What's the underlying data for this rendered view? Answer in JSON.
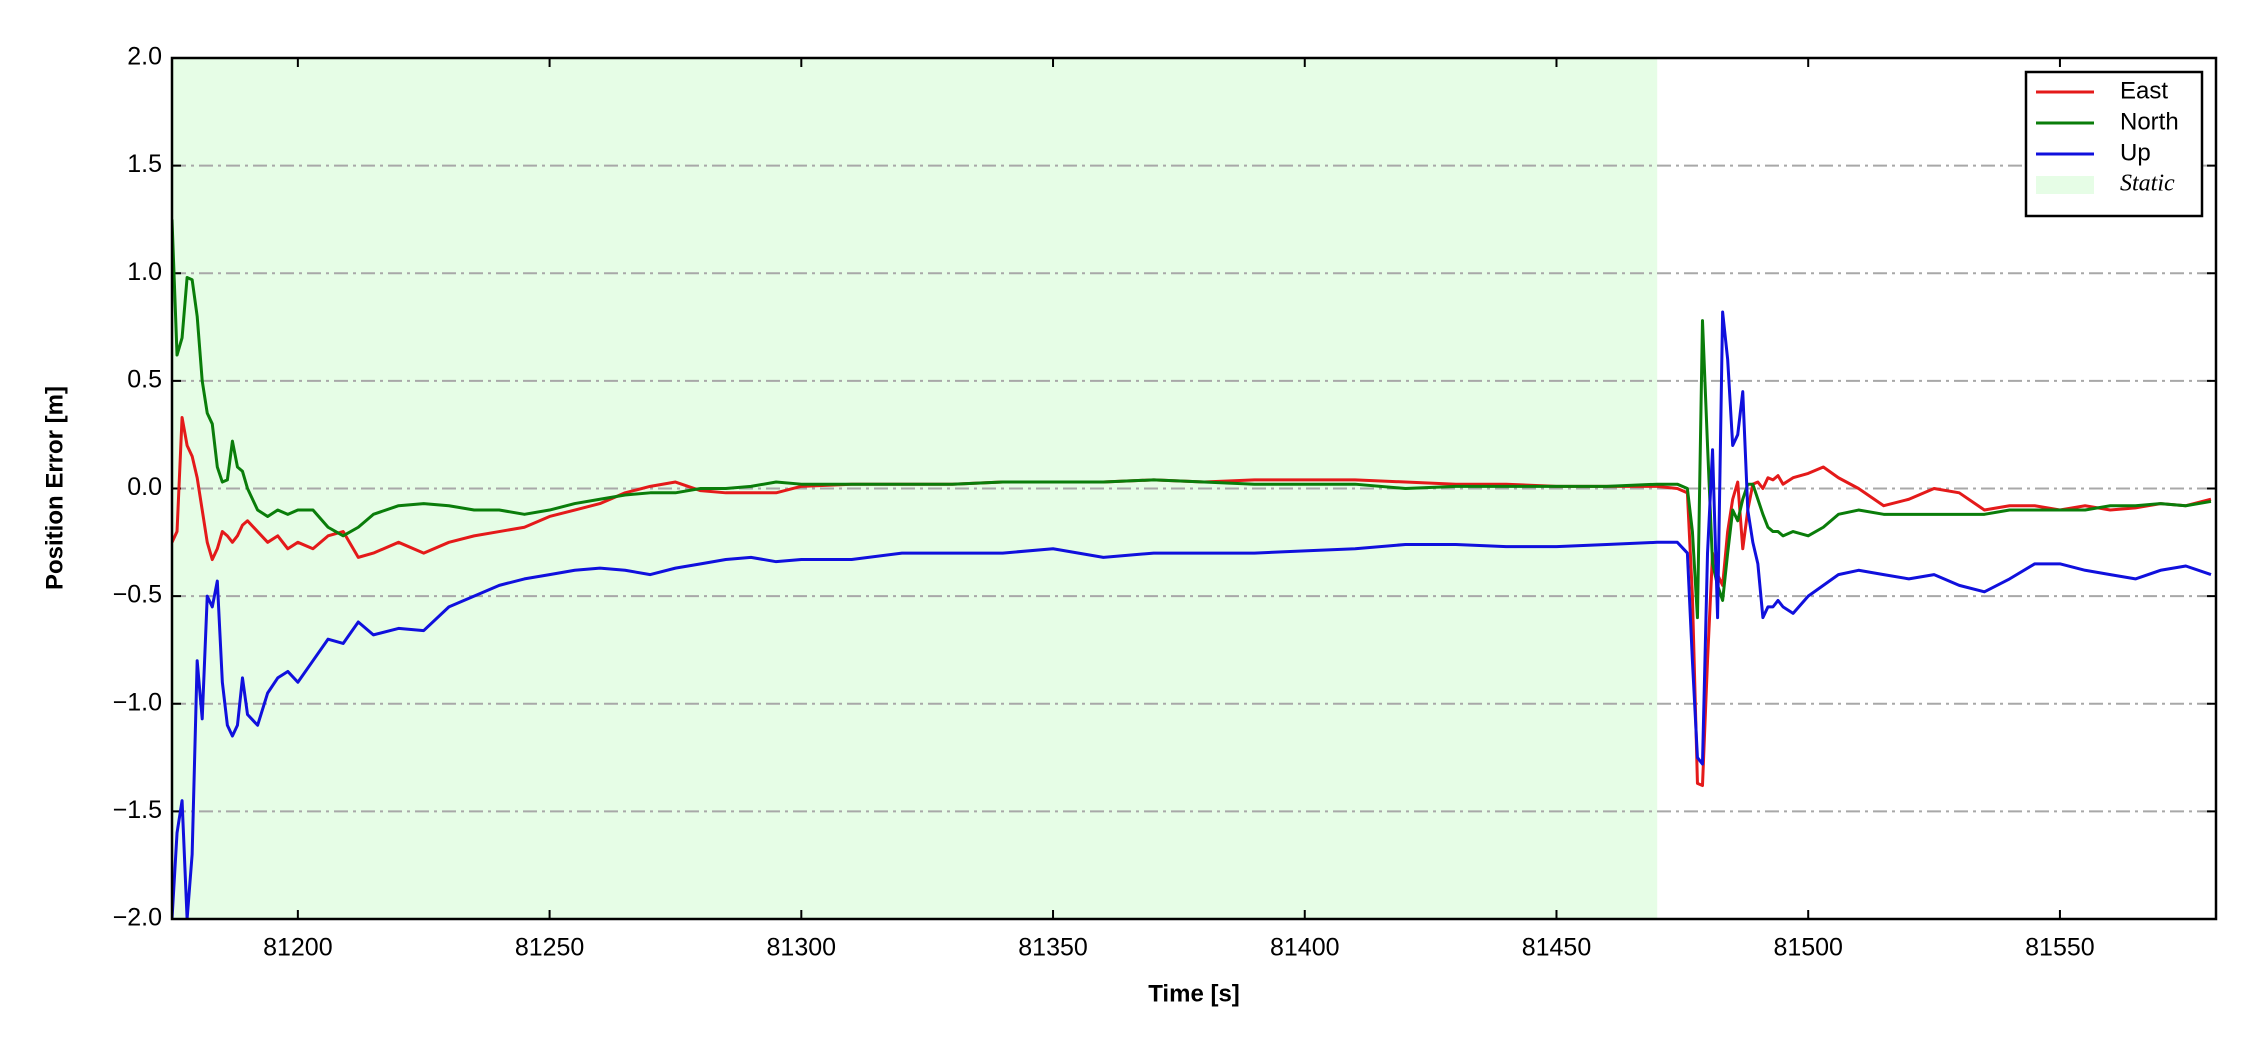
{
  "chart_data": {
    "type": "line",
    "xlabel": "Time [s]",
    "ylabel": "Position Error [m]",
    "xlim": [
      81175,
      81581
    ],
    "ylim": [
      -2,
      2
    ],
    "xticks": [
      81200,
      81250,
      81300,
      81350,
      81400,
      81450,
      81500,
      81550
    ],
    "yticks": [
      {
        "value": -2,
        "label": "−2.0"
      },
      {
        "value": -1.5,
        "label": "−1.5"
      },
      {
        "value": -1,
        "label": "−1.0"
      },
      {
        "value": -0.5,
        "label": "−0.5"
      },
      {
        "value": 0,
        "label": "0.0"
      },
      {
        "value": 0.5,
        "label": "0.5"
      },
      {
        "value": 1,
        "label": "1.0"
      },
      {
        "value": 1.5,
        "label": "1.5"
      },
      {
        "value": 2,
        "label": "2.0"
      }
    ],
    "grid": true,
    "legend": "upper right",
    "static_region": {
      "name": "Static",
      "color": "#e6fde6",
      "x": [
        81175,
        81470
      ]
    },
    "x": [
      81175,
      81176,
      81177,
      81178,
      81179,
      81180,
      81181,
      81182,
      81183,
      81184,
      81185,
      81186,
      81187,
      81188,
      81189,
      81190,
      81192,
      81194,
      81196,
      81198,
      81200,
      81203,
      81206,
      81209,
      81212,
      81215,
      81220,
      81225,
      81230,
      81235,
      81240,
      81245,
      81250,
      81255,
      81260,
      81265,
      81270,
      81275,
      81280,
      81285,
      81290,
      81295,
      81300,
      81310,
      81320,
      81330,
      81340,
      81350,
      81360,
      81370,
      81380,
      81390,
      81400,
      81410,
      81420,
      81430,
      81440,
      81450,
      81460,
      81470,
      81474,
      81476,
      81477,
      81478,
      81479,
      81480,
      81481,
      81482,
      81483,
      81484,
      81485,
      81486,
      81487,
      81488,
      81489,
      81490,
      81491,
      81492,
      81493,
      81494,
      81495,
      81497,
      81500,
      81503,
      81506,
      81510,
      81515,
      81520,
      81525,
      81530,
      81535,
      81540,
      81545,
      81550,
      81555,
      81560,
      81565,
      81570,
      81575,
      81580
    ],
    "series": [
      {
        "name": "East",
        "color": "#e41a1a",
        "values": [
          -0.25,
          -0.2,
          0.33,
          0.2,
          0.15,
          0.05,
          -0.1,
          -0.25,
          -0.33,
          -0.28,
          -0.2,
          -0.22,
          -0.25,
          -0.22,
          -0.17,
          -0.15,
          -0.2,
          -0.25,
          -0.22,
          -0.28,
          -0.25,
          -0.28,
          -0.22,
          -0.2,
          -0.32,
          -0.3,
          -0.25,
          -0.3,
          -0.25,
          -0.22,
          -0.2,
          -0.18,
          -0.13,
          -0.1,
          -0.07,
          -0.02,
          0.01,
          0.03,
          -0.01,
          -0.02,
          -0.02,
          -0.02,
          0.01,
          0.02,
          0.02,
          0.02,
          0.03,
          0.03,
          0.03,
          0.04,
          0.03,
          0.04,
          0.04,
          0.04,
          0.03,
          0.02,
          0.02,
          0.01,
          0.01,
          0.01,
          0.0,
          -0.02,
          -0.5,
          -1.37,
          -1.38,
          -0.8,
          -0.3,
          -0.4,
          -0.45,
          -0.2,
          -0.05,
          0.03,
          -0.28,
          -0.1,
          0.02,
          0.03,
          0.0,
          0.05,
          0.04,
          0.06,
          0.02,
          0.05,
          0.07,
          0.1,
          0.05,
          0.0,
          -0.08,
          -0.05,
          0.0,
          -0.02,
          -0.1,
          -0.08,
          -0.08,
          -0.1,
          -0.08,
          -0.1,
          -0.09,
          -0.07,
          -0.08,
          -0.05
        ]
      },
      {
        "name": "North",
        "color": "#0a7d0a",
        "values": [
          1.25,
          0.62,
          0.7,
          0.98,
          0.97,
          0.8,
          0.5,
          0.35,
          0.3,
          0.1,
          0.03,
          0.04,
          0.22,
          0.1,
          0.08,
          0.0,
          -0.1,
          -0.13,
          -0.1,
          -0.12,
          -0.1,
          -0.1,
          -0.18,
          -0.22,
          -0.18,
          -0.12,
          -0.08,
          -0.07,
          -0.08,
          -0.1,
          -0.1,
          -0.12,
          -0.1,
          -0.07,
          -0.05,
          -0.03,
          -0.02,
          -0.02,
          0.0,
          0.0,
          0.01,
          0.03,
          0.02,
          0.02,
          0.02,
          0.02,
          0.03,
          0.03,
          0.03,
          0.04,
          0.03,
          0.02,
          0.02,
          0.02,
          0.0,
          0.01,
          0.01,
          0.01,
          0.01,
          0.02,
          0.02,
          0.0,
          -0.2,
          -0.6,
          0.78,
          0.2,
          -0.35,
          -0.45,
          -0.52,
          -0.3,
          -0.1,
          -0.15,
          -0.05,
          0.02,
          0.02,
          -0.05,
          -0.12,
          -0.18,
          -0.2,
          -0.2,
          -0.22,
          -0.2,
          -0.22,
          -0.18,
          -0.12,
          -0.1,
          -0.12,
          -0.12,
          -0.12,
          -0.12,
          -0.12,
          -0.1,
          -0.1,
          -0.1,
          -0.1,
          -0.08,
          -0.08,
          -0.07,
          -0.08,
          -0.06
        ]
      },
      {
        "name": "Up",
        "color": "#1010dd",
        "values": [
          -2.0,
          -1.6,
          -1.45,
          -2.0,
          -1.7,
          -0.8,
          -1.07,
          -0.5,
          -0.55,
          -0.43,
          -0.9,
          -1.1,
          -1.15,
          -1.1,
          -0.88,
          -1.05,
          -1.1,
          -0.95,
          -0.88,
          -0.85,
          -0.9,
          -0.8,
          -0.7,
          -0.72,
          -0.62,
          -0.68,
          -0.65,
          -0.66,
          -0.55,
          -0.5,
          -0.45,
          -0.42,
          -0.4,
          -0.38,
          -0.37,
          -0.38,
          -0.4,
          -0.37,
          -0.35,
          -0.33,
          -0.32,
          -0.34,
          -0.33,
          -0.33,
          -0.3,
          -0.3,
          -0.3,
          -0.28,
          -0.32,
          -0.3,
          -0.3,
          -0.3,
          -0.29,
          -0.28,
          -0.26,
          -0.26,
          -0.27,
          -0.27,
          -0.26,
          -0.25,
          -0.25,
          -0.3,
          -0.8,
          -1.25,
          -1.28,
          -0.3,
          0.18,
          -0.6,
          0.82,
          0.6,
          0.2,
          0.25,
          0.45,
          -0.1,
          -0.25,
          -0.35,
          -0.6,
          -0.55,
          -0.55,
          -0.52,
          -0.55,
          -0.58,
          -0.5,
          -0.45,
          -0.4,
          -0.38,
          -0.4,
          -0.42,
          -0.4,
          -0.45,
          -0.48,
          -0.42,
          -0.35,
          -0.35,
          -0.38,
          -0.4,
          -0.42,
          -0.38,
          -0.36,
          -0.4
        ]
      }
    ]
  }
}
